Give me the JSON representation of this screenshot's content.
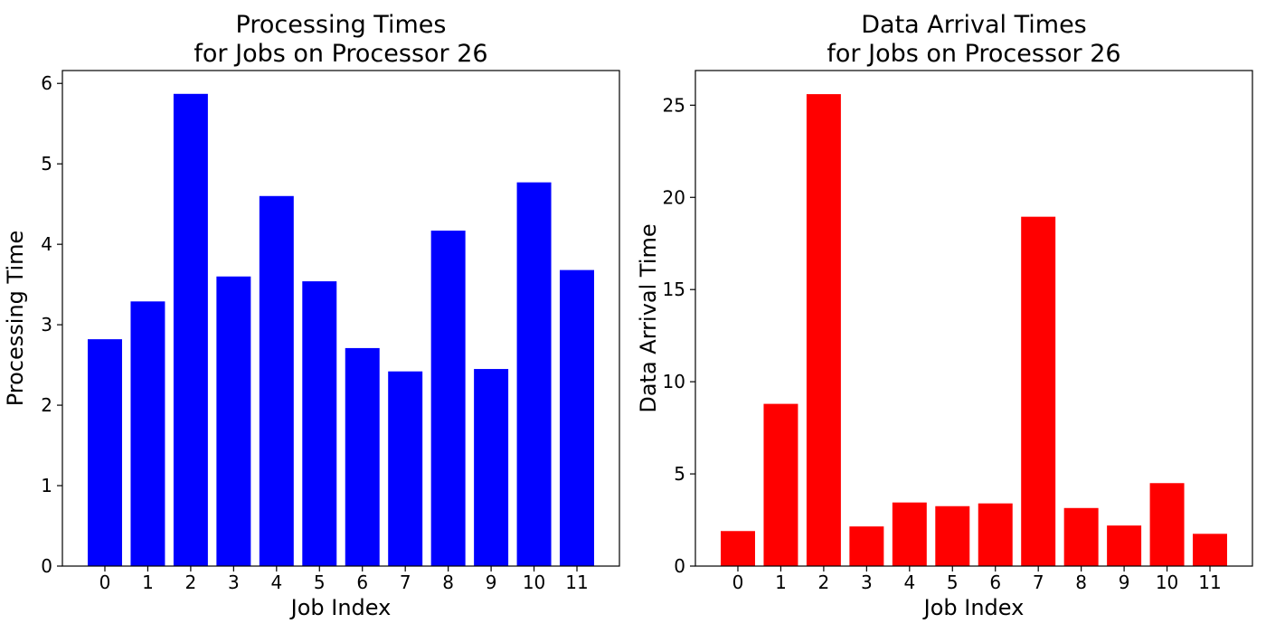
{
  "chart_data": [
    {
      "type": "bar",
      "title": "Processing Times\nfor Jobs on Processor 26",
      "xlabel": "Job Index",
      "ylabel": "Processing Time",
      "categories": [
        "0",
        "1",
        "2",
        "3",
        "4",
        "5",
        "6",
        "7",
        "8",
        "9",
        "10",
        "11"
      ],
      "values": [
        2.82,
        3.29,
        5.87,
        3.6,
        4.6,
        3.54,
        2.71,
        2.42,
        4.17,
        2.45,
        4.77,
        3.68
      ],
      "yticks": [
        0,
        1,
        2,
        3,
        4,
        5,
        6
      ],
      "ylim": [
        0,
        6.16
      ],
      "color": "#0000ff",
      "grid": false
    },
    {
      "type": "bar",
      "title": "Data Arrival Times\nfor Jobs on Processor 26",
      "xlabel": "Job Index",
      "ylabel": "Data Arrival Time",
      "categories": [
        "0",
        "1",
        "2",
        "3",
        "4",
        "5",
        "6",
        "7",
        "8",
        "9",
        "10",
        "11"
      ],
      "values": [
        1.9,
        8.8,
        25.6,
        2.15,
        3.45,
        3.25,
        3.4,
        18.95,
        3.15,
        2.2,
        4.5,
        1.75
      ],
      "yticks": [
        0,
        5,
        10,
        15,
        20,
        25
      ],
      "ylim": [
        0,
        26.88
      ],
      "color": "#ff0000",
      "grid": false
    }
  ]
}
